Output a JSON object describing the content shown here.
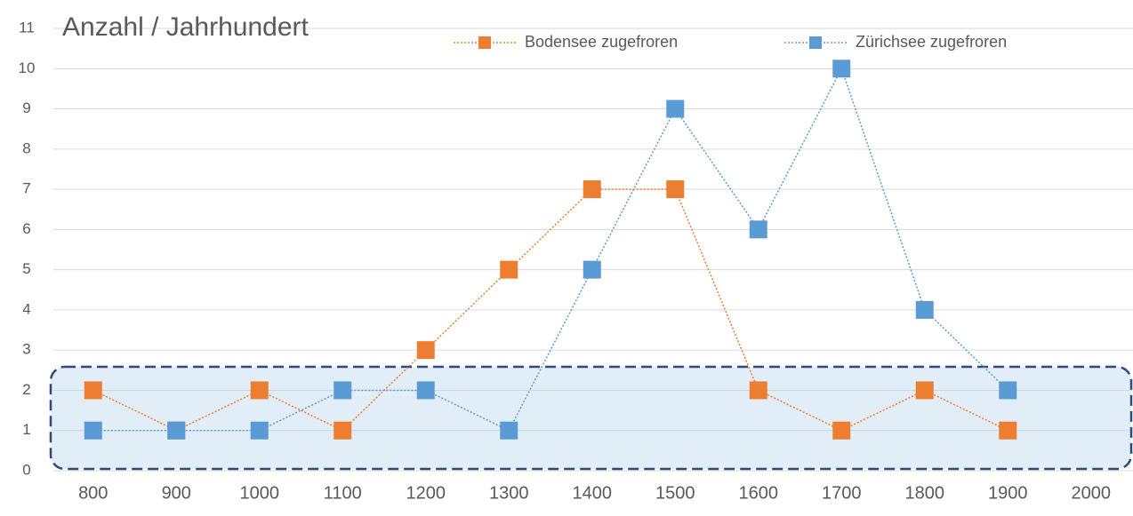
{
  "chart_data": {
    "type": "line",
    "title": "Anzahl / Jahrhundert",
    "categories": [
      "800",
      "900",
      "1000",
      "1100",
      "1200",
      "1300",
      "1400",
      "1500",
      "1600",
      "1700",
      "1800",
      "1900",
      "2000"
    ],
    "series": [
      {
        "name": "Bodensee zugefroren",
        "color": "#ed7d31",
        "values": [
          2,
          1,
          2,
          1,
          3,
          5,
          7,
          7,
          2,
          1,
          2,
          1,
          null
        ]
      },
      {
        "name": "Zürichsee zugefroren",
        "color": "#5b9bd5",
        "values": [
          1,
          1,
          1,
          2,
          2,
          1,
          5,
          9,
          6,
          10,
          4,
          2,
          null
        ]
      }
    ],
    "ylim": [
      0,
      11
    ],
    "yticks": [
      0,
      1,
      2,
      3,
      4,
      5,
      6,
      7,
      8,
      9,
      10,
      11
    ],
    "grid": true,
    "legend": "top"
  }
}
